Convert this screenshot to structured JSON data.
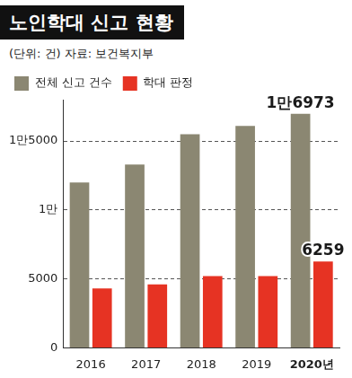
{
  "chart_data": {
    "type": "bar",
    "title": "노인학대 신고 현황",
    "subtitle": "(단위: 건) 자료: 보건복지부",
    "categories": [
      "2016",
      "2017",
      "2018",
      "2019",
      "2020년"
    ],
    "series": [
      {
        "name": "전체 신고 건수",
        "color": "#8b8772",
        "values": [
          12000,
          13300,
          15500,
          16100,
          16973
        ],
        "value_labels": [
          null,
          null,
          null,
          null,
          "1만6973"
        ]
      },
      {
        "name": "학대 판정",
        "color": "#e63323",
        "values": [
          4300,
          4600,
          5200,
          5200,
          6259
        ],
        "value_labels": [
          null,
          null,
          null,
          null,
          "6259"
        ]
      }
    ],
    "ylim": [
      0,
      18000
    ],
    "yticks": [
      0,
      5000,
      {
        "value": 10000,
        "label": "1만"
      },
      {
        "value": 15000,
        "label": "1만5000"
      }
    ],
    "grid": true,
    "legend": "top-left"
  }
}
